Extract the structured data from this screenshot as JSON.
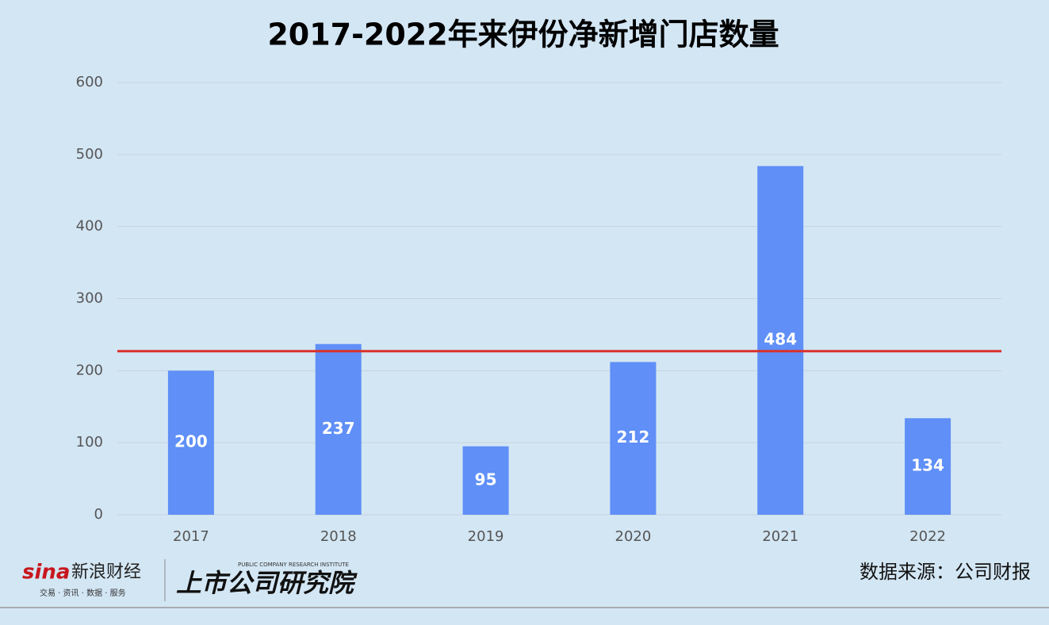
{
  "chart_data": {
    "type": "bar",
    "title": "2017-2022年来伊份净新增门店数量",
    "categories": [
      "2017",
      "2018",
      "2019",
      "2020",
      "2021",
      "2022"
    ],
    "values": [
      200,
      237,
      95,
      212,
      484,
      134
    ],
    "color": "#5f8ff7",
    "ylim": [
      0,
      600
    ],
    "yticks": [
      0,
      100,
      200,
      300,
      400,
      500,
      600
    ],
    "grid": true,
    "reference_line": {
      "value": 227,
      "color": "#d9302a"
    }
  },
  "footer": {
    "brand_logo": "sina",
    "brand_name": "新浪财经",
    "brand_slogan": "交易 · 资讯 · 数据 · 服务",
    "institute_name": "上市公司研究院",
    "institute_english": "PUBLIC COMPANY RESEARCH INSTITUTE",
    "source": "数据来源：公司财报"
  }
}
